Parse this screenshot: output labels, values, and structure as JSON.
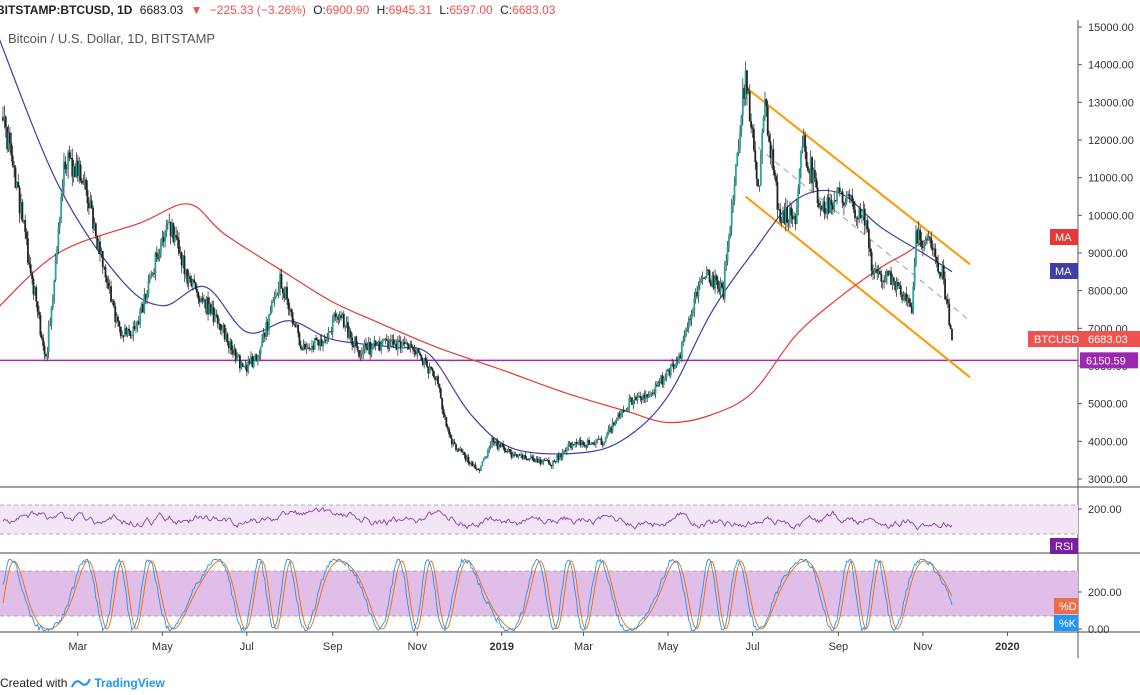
{
  "header": {
    "symbol": "BITSTAMP:BTCUSD, 1D",
    "last": "6683.03",
    "change": "−225.33 (−3.26%)",
    "open_label": "O:",
    "open": "6900.90",
    "high_label": "H:",
    "high": "6945.31",
    "low_label": "L:",
    "low": "6597.00",
    "close_label": "C:",
    "close": "6683.03"
  },
  "subtitle": "Bitcoin / U.S. Dollar, 1D, BITSTAMP",
  "footer": {
    "created_with": "Created with",
    "brand": "TradingView"
  },
  "colors": {
    "up": "#26a69a",
    "down": "#ef5350",
    "candle_neutral": "#222222",
    "ma_fast": "#3f3fa5",
    "ma_slow": "#e53935",
    "channel": "#ff9800",
    "support": "#9c27b0",
    "rsi": "#8e44ad",
    "stoch_k": "#2196f3",
    "stoch_d": "#ef6c00"
  },
  "chart_data": [
    {
      "type": "candlestick",
      "title": "Bitcoin / U.S. Dollar, 1D, BITSTAMP",
      "x_ticks": [
        "Mar",
        "May",
        "Jul",
        "Sep",
        "Nov",
        "2019",
        "Mar",
        "May",
        "Jul",
        "Sep",
        "Nov",
        "2020"
      ],
      "y_ticks": [
        "15000.00",
        "14000.00",
        "13000.00",
        "12000.00",
        "11000.00",
        "10000.00",
        "9000.00",
        "8000.00",
        "7000.00",
        "6000.00",
        "5000.00",
        "4000.00",
        "3000.00"
      ],
      "ylim": [
        2800,
        15300
      ],
      "price_path": [
        [
          "2018-01-01",
          13500
        ],
        [
          "2018-01-15",
          11000
        ],
        [
          "2018-02-06",
          6100
        ],
        [
          "2018-02-20",
          11500
        ],
        [
          "2018-03-05",
          11000
        ],
        [
          "2018-03-20",
          8500
        ],
        [
          "2018-04-01",
          6800
        ],
        [
          "2018-04-12",
          7000
        ],
        [
          "2018-05-05",
          9900
        ],
        [
          "2018-05-20",
          8300
        ],
        [
          "2018-06-10",
          7200
        ],
        [
          "2018-06-28",
          5900
        ],
        [
          "2018-07-10",
          6300
        ],
        [
          "2018-07-25",
          8400
        ],
        [
          "2018-08-10",
          6400
        ],
        [
          "2018-08-25",
          6700
        ],
        [
          "2018-09-05",
          7400
        ],
        [
          "2018-09-20",
          6400
        ],
        [
          "2018-10-10",
          6600
        ],
        [
          "2018-11-01",
          6400
        ],
        [
          "2018-11-15",
          5600
        ],
        [
          "2018-11-25",
          4000
        ],
        [
          "2018-12-15",
          3200
        ],
        [
          "2018-12-25",
          4000
        ],
        [
          "2019-01-10",
          3600
        ],
        [
          "2019-02-05",
          3400
        ],
        [
          "2019-02-20",
          3900
        ],
        [
          "2019-03-15",
          4000
        ],
        [
          "2019-04-02",
          5000
        ],
        [
          "2019-04-20",
          5300
        ],
        [
          "2019-05-10",
          6300
        ],
        [
          "2019-05-25",
          8500
        ],
        [
          "2019-06-10",
          8000
        ],
        [
          "2019-06-26",
          13800
        ],
        [
          "2019-07-05",
          10500
        ],
        [
          "2019-07-10",
          13000
        ],
        [
          "2019-07-20",
          10000
        ],
        [
          "2019-08-01",
          10000
        ],
        [
          "2019-08-06",
          12000
        ],
        [
          "2019-08-20",
          10200
        ],
        [
          "2019-09-01",
          10500
        ],
        [
          "2019-09-20",
          10000
        ],
        [
          "2019-09-25",
          8500
        ],
        [
          "2019-10-10",
          8300
        ],
        [
          "2019-10-24",
          7400
        ],
        [
          "2019-10-27",
          9500
        ],
        [
          "2019-11-05",
          9300
        ],
        [
          "2019-11-15",
          8500
        ],
        [
          "2019-11-22",
          6683
        ]
      ],
      "ma_fast": [
        [
          "2018-01-01",
          14900
        ],
        [
          "2018-02-15",
          10800
        ],
        [
          "2018-04-01",
          8300
        ],
        [
          "2018-05-01",
          7600
        ],
        [
          "2018-06-01",
          8100
        ],
        [
          "2018-07-01",
          6900
        ],
        [
          "2018-08-01",
          7200
        ],
        [
          "2018-09-01",
          6700
        ],
        [
          "2018-10-15",
          6500
        ],
        [
          "2018-11-10",
          6300
        ],
        [
          "2018-12-10",
          4700
        ],
        [
          "2019-01-10",
          3800
        ],
        [
          "2019-03-01",
          3700
        ],
        [
          "2019-04-01",
          4100
        ],
        [
          "2019-05-01",
          5200
        ],
        [
          "2019-06-01",
          7400
        ],
        [
          "2019-07-01",
          9000
        ],
        [
          "2019-08-01",
          10400
        ],
        [
          "2019-09-01",
          10600
        ],
        [
          "2019-10-01",
          9700
        ],
        [
          "2019-11-01",
          9000
        ],
        [
          "2019-11-22",
          8500
        ]
      ],
      "ma_slow": [
        [
          "2018-01-01",
          7500
        ],
        [
          "2018-02-15",
          9000
        ],
        [
          "2018-04-15",
          9800
        ],
        [
          "2018-05-20",
          10300
        ],
        [
          "2018-06-15",
          9500
        ],
        [
          "2018-08-01",
          8400
        ],
        [
          "2018-09-01",
          7700
        ],
        [
          "2018-10-01",
          7200
        ],
        [
          "2018-11-15",
          6500
        ],
        [
          "2019-01-01",
          5900
        ],
        [
          "2019-02-15",
          5300
        ],
        [
          "2019-04-01",
          4800
        ],
        [
          "2019-05-01",
          4500
        ],
        [
          "2019-06-01",
          4700
        ],
        [
          "2019-07-01",
          5300
        ],
        [
          "2019-08-01",
          6800
        ],
        [
          "2019-09-01",
          7800
        ],
        [
          "2019-10-01",
          8600
        ],
        [
          "2019-10-20",
          9000
        ],
        [
          "2019-11-05",
          9400
        ]
      ],
      "channel": {
        "upper": [
          [
            "2019-06-26",
            13400
          ],
          [
            "2019-12-05",
            8700
          ]
        ],
        "lower": [
          [
            "2019-06-26",
            10500
          ],
          [
            "2019-12-05",
            5700
          ]
        ],
        "mid": [
          [
            "2019-07-05",
            11800
          ],
          [
            "2019-12-05",
            7200
          ]
        ]
      },
      "horizontal_line": {
        "value": 6150.59,
        "label": "6150.59"
      },
      "price_label": {
        "value": 6683.03,
        "label": "BTCUSD",
        "text": "6683.03"
      },
      "ma_labels": [
        {
          "label": "MA",
          "value": 9400
        },
        {
          "label": "MA",
          "value": 8500
        }
      ]
    },
    {
      "type": "line",
      "name": "RSI",
      "y_ticks": [
        "200.00"
      ],
      "band": [
        130,
        200
      ]
    },
    {
      "type": "line",
      "series_labels": [
        "%D",
        "%K"
      ],
      "y_ticks": [
        "200.00",
        "0.00"
      ],
      "band": [
        70,
        300
      ]
    }
  ]
}
